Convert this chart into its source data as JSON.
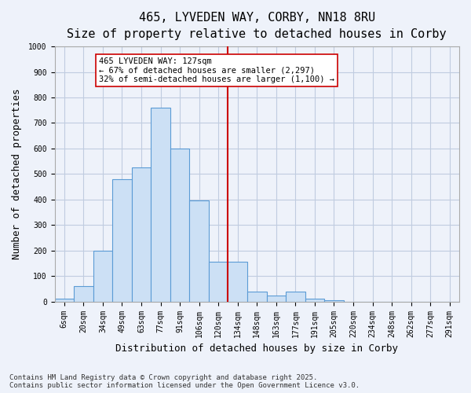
{
  "title": "465, LYVEDEN WAY, CORBY, NN18 8RU",
  "subtitle": "Size of property relative to detached houses in Corby",
  "xlabel": "Distribution of detached houses by size in Corby",
  "ylabel": "Number of detached properties",
  "bin_labels": [
    "6sqm",
    "20sqm",
    "34sqm",
    "49sqm",
    "63sqm",
    "77sqm",
    "91sqm",
    "106sqm",
    "120sqm",
    "134sqm",
    "148sqm",
    "163sqm",
    "177sqm",
    "191sqm",
    "205sqm",
    "220sqm",
    "234sqm",
    "248sqm",
    "262sqm",
    "277sqm",
    "291sqm"
  ],
  "bar_values": [
    10,
    60,
    200,
    480,
    525,
    760,
    600,
    395,
    155,
    155,
    40,
    25,
    40,
    10,
    5,
    0,
    0,
    0,
    0,
    0,
    0
  ],
  "bar_color": "#cce0f5",
  "bar_edge_color": "#5b9bd5",
  "vline_x": 8.5,
  "vline_color": "#cc0000",
  "annotation_text": "465 LYVEDEN WAY: 127sqm\n← 67% of detached houses are smaller (2,297)\n32% of semi-detached houses are larger (1,100) →",
  "annotation_box_color": "#ffffff",
  "annotation_box_edge": "#cc0000",
  "ylim": [
    0,
    1000
  ],
  "yticks": [
    0,
    100,
    200,
    300,
    400,
    500,
    600,
    700,
    800,
    900,
    1000
  ],
  "grid_color": "#c0cce0",
  "footnote": "Contains HM Land Registry data © Crown copyright and database right 2025.\nContains public sector information licensed under the Open Government Licence v3.0.",
  "bg_color": "#eef2fa",
  "plot_bg_color": "#eef2fa",
  "title_fontsize": 11,
  "axis_label_fontsize": 9,
  "tick_fontsize": 7,
  "annotation_fontsize": 7.5,
  "footnote_fontsize": 6.5
}
